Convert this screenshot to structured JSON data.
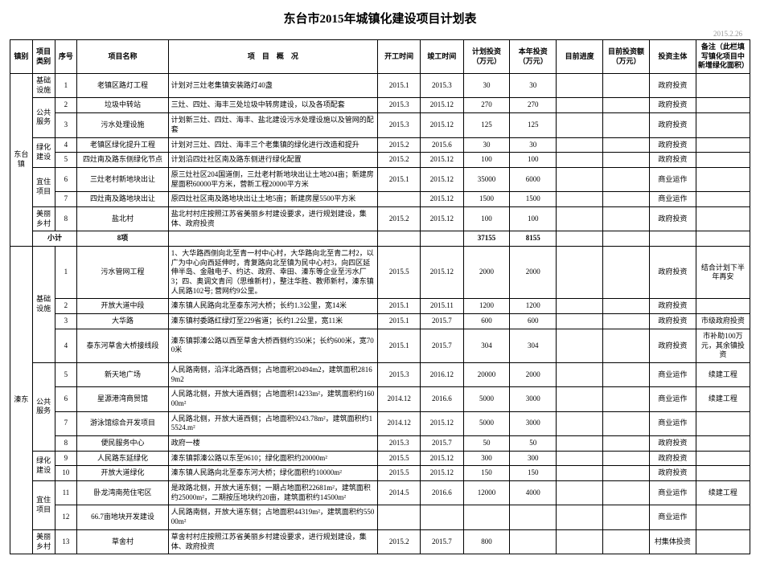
{
  "title": "东台市2015年城镇化建设项目计划表",
  "date": "2015.2.26",
  "headers": {
    "town": "镇别",
    "category": "项目类别",
    "num": "序号",
    "name": "项目名称",
    "desc": "项　目　概　况",
    "start": "开工时间",
    "end": "竣工时间",
    "plan_inv": "计划投资（万元）",
    "year_inv": "本年投资（万元）",
    "progress": "目前进度",
    "curr_inv": "目前投资额（万元）",
    "subject": "投资主体",
    "note": "备注（此栏填写镇化项目中新增绿化面积）"
  },
  "groups": [
    {
      "town": "东台镇",
      "categories": [
        {
          "cat": "基础设施",
          "rows": [
            {
              "n": "1",
              "name": "老镇区路灯工程",
              "desc": "计划对三灶老集镇安装路灯40盏",
              "s": "2015.1",
              "e": "2015.3",
              "p": "30",
              "y": "30",
              "subj": "政府投资"
            }
          ]
        },
        {
          "cat": "公共服务",
          "rows": [
            {
              "n": "2",
              "name": "垃圾中转站",
              "desc": "三灶、四灶、海丰三处垃圾中转房建设，以及各项配套",
              "s": "2015.3",
              "e": "2015.12",
              "p": "270",
              "y": "270",
              "subj": "政府投资"
            },
            {
              "n": "3",
              "name": "污水处理设施",
              "desc": "计划新三灶、四灶、海丰、盐北建设污水处理设施以及管网的配套",
              "s": "2015.3",
              "e": "2015.12",
              "p": "125",
              "y": "125",
              "subj": "政府投资"
            }
          ]
        },
        {
          "cat": "绿化建设",
          "rows": [
            {
              "n": "4",
              "name": "老镇区绿化提升工程",
              "desc": "计划对三灶、四灶、海丰三个老集镇的绿化进行改造和提升",
              "s": "2015.2",
              "e": "2015.6",
              "p": "30",
              "y": "30",
              "subj": "政府投资"
            },
            {
              "n": "5",
              "name": "四灶南及路东侧绿化节点",
              "desc": "计划沿四灶社区南及路东侧进行绿化配置",
              "s": "2015.2",
              "e": "2015.12",
              "p": "100",
              "y": "100",
              "subj": "政府投资"
            }
          ]
        },
        {
          "cat": "宜住项目",
          "rows": [
            {
              "n": "6",
              "name": "三灶老村新地块出让",
              "desc": "原三灶社区204国道侧，三灶老村新地块出让土地204亩；新建房屋面积60000平方米，营新工程20000平方米",
              "s": "2015.1",
              "e": "2015.12",
              "p": "35000",
              "y": "6000",
              "subj": "商业运作"
            },
            {
              "n": "7",
              "name": "四灶南及路地块出让",
              "desc": "原四灶社区南及路地块出让土地5亩；新建房屋5500平方米",
              "s": "",
              "e": "2015.12",
              "p": "1500",
              "y": "1500",
              "subj": "商业运作"
            }
          ]
        },
        {
          "cat": "美丽乡村",
          "rows": [
            {
              "n": "8",
              "name": "盐北村",
              "desc": "盐北村村庄按照江苏省美丽乡村建设要求，进行规划建设，集体、政府投资",
              "s": "2015.2",
              "e": "2015.12",
              "p": "100",
              "y": "100",
              "subj": "政府投资"
            }
          ]
        }
      ],
      "subtotal": {
        "label": "小计",
        "count": "8项",
        "p": "37155",
        "y": "8155"
      }
    },
    {
      "town": "溱东",
      "categories": [
        {
          "cat": "基础设施",
          "rows": [
            {
              "n": "1",
              "name": "污水管网工程",
              "desc": "1、大华路西侧向北至青一村中心村，大华路向北至青二村2，以广为中心向西延伸时，青复路向北至镇为民中心村3，向四区延伸半岛、金融电子、约达、政府、幸田、溱东等企业至污水厂3；四、奥调文青闫（思维新村），整注华胜、教师新村，溱东镇人民路102号; 营网约9公里。",
              "s": "2015.5",
              "e": "2015.12",
              "p": "2000",
              "y": "2000",
              "subj": "政府投资",
              "note": "结合计划下半年再安"
            },
            {
              "n": "2",
              "name": "开放大道中段",
              "desc": "溱东镇人民路向北至泰东河大桥；长约1.3公里，宽14米",
              "s": "2015.1",
              "e": "2015.11",
              "p": "1200",
              "y": "1200",
              "subj": "政府投资"
            },
            {
              "n": "3",
              "name": "大华路",
              "desc": "溱东镇村委路红绿灯至229省道；长约1.2公里，宽11米",
              "s": "2015.1",
              "e": "2015.7",
              "p": "600",
              "y": "600",
              "subj": "政府投资",
              "note": "市级政府投资"
            },
            {
              "n": "4",
              "name": "泰东河草舍大桥接线段",
              "desc": "溱东镇郭溱公路以西至草舍大桥西侧约350米；长约600米，宽700米",
              "s": "2015.1",
              "e": "2015.7",
              "p": "304",
              "y": "304",
              "subj": "政府投资",
              "note": "市补助100万元，其余镇投资"
            }
          ]
        },
        {
          "cat": "公共服务",
          "rows": [
            {
              "n": "5",
              "name": "新天地广场",
              "desc": "人民路南侧，沿洋北路西侧；占地面积20494m2，建筑面积28169m2",
              "s": "2015.3",
              "e": "2016.12",
              "p": "20000",
              "y": "2000",
              "subj": "商业运作",
              "note": "续建工程"
            },
            {
              "n": "6",
              "name": "星源港湾商贸馆",
              "desc": "人民路北侧，开放大道西侧；占地面积14233m²，建筑面积约16000m²",
              "s": "2014.12",
              "e": "2016.6",
              "p": "5000",
              "y": "3000",
              "subj": "商业运作",
              "note": "续建工程"
            },
            {
              "n": "7",
              "name": "游泳馆综合开发项目",
              "desc": "人民路北侧，开放大道西侧；占地面积9243.78m²，建筑面积约15524.m²",
              "s": "2014.12",
              "e": "2015.12",
              "p": "5000",
              "y": "3000",
              "subj": "商业运作"
            },
            {
              "n": "8",
              "name": "便民服务中心",
              "desc": "政府一楼",
              "s": "2015.3",
              "e": "2015.7",
              "p": "50",
              "y": "50",
              "subj": "政府投资"
            }
          ]
        },
        {
          "cat": "绿化建设",
          "rows": [
            {
              "n": "9",
              "name": "人民路东延绿化",
              "desc": "溱东镇郭溱公路以东至9610；绿化面积约20000m²",
              "s": "2015.5",
              "e": "2015.12",
              "p": "300",
              "y": "300",
              "subj": "政府投资"
            },
            {
              "n": "10",
              "name": "开放大道绿化",
              "desc": "溱东镇人民路向北至泰东河大桥；绿化面积约10000m²",
              "s": "2015.5",
              "e": "2015.12",
              "p": "150",
              "y": "150",
              "subj": "政府投资"
            }
          ]
        },
        {
          "cat": "宜住项目",
          "rows": [
            {
              "n": "11",
              "name": "卧龙湾南苑住宅区",
              "desc": "是政路北侧，开放大道东侧；一期占地面积22681m²，建筑面积约25000m²，二期按压地块约20亩，建筑面积约14500m²",
              "s": "2014.5",
              "e": "2016.6",
              "p": "12000",
              "y": "4000",
              "subj": "商业运作",
              "note": "续建工程"
            },
            {
              "n": "12",
              "name": "66.7亩地块开发建设",
              "desc": "人民路南侧，开放大道东侧；占地面积44319m²，建筑面积约55000m²",
              "s": "",
              "e": "",
              "p": "",
              "y": "",
              "subj": "商业运作"
            }
          ]
        },
        {
          "cat": "美丽乡村",
          "rows": [
            {
              "n": "13",
              "name": "草舍村",
              "desc": "草舍村村庄按照江苏省美丽乡村建设要求，进行规划建设，集体、政府投资",
              "s": "2015.2",
              "e": "2015.7",
              "p": "800",
              "y": "",
              "subj": "村集体投资"
            }
          ]
        }
      ]
    }
  ]
}
